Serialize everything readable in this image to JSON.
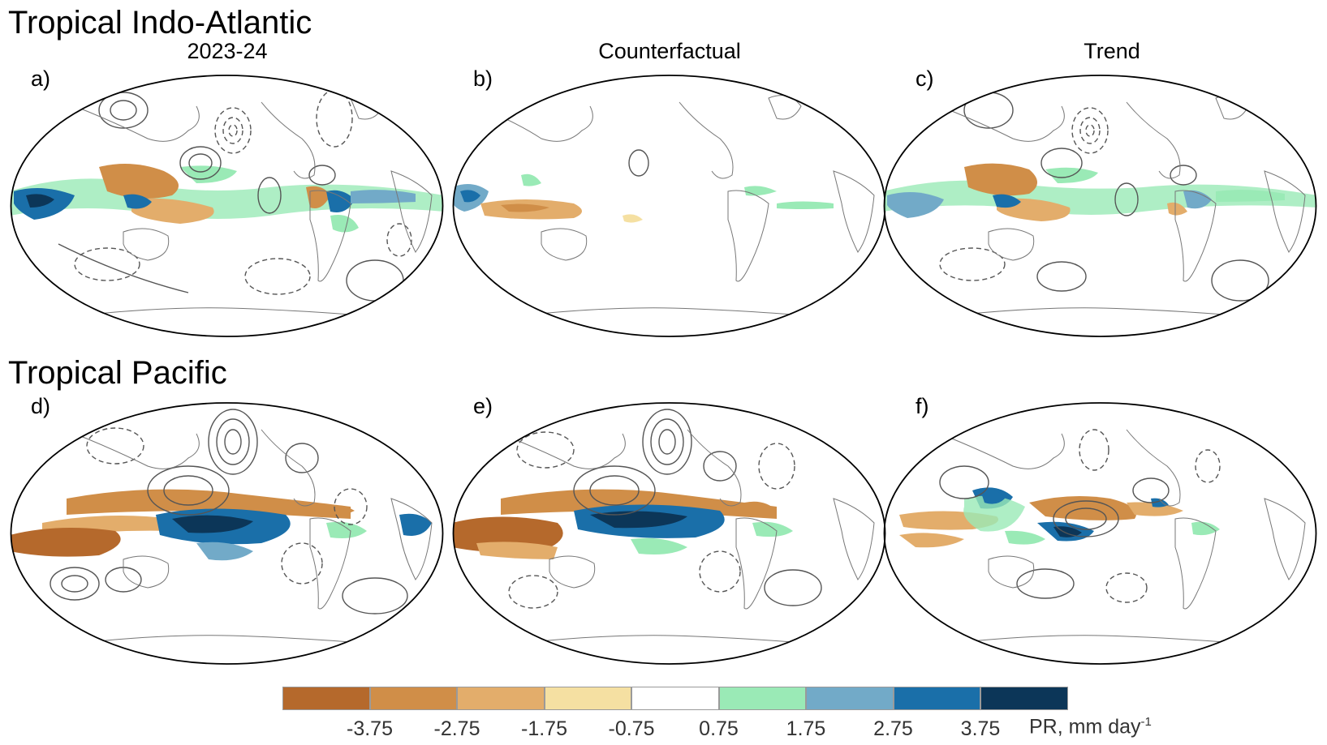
{
  "rows": [
    {
      "title": "Tropical Indo-Atlantic",
      "panels": [
        {
          "label": "a)",
          "column_title": "2023-24"
        },
        {
          "label": "b)",
          "column_title": "Counterfactual"
        },
        {
          "label": "c)",
          "column_title": "Trend"
        }
      ]
    },
    {
      "title": "Tropical Pacific",
      "panels": [
        {
          "label": "d)",
          "column_title": ""
        },
        {
          "label": "e)",
          "column_title": ""
        },
        {
          "label": "f)",
          "column_title": ""
        }
      ]
    }
  ],
  "colorbar": {
    "colors": [
      "#b5692c",
      "#d08e48",
      "#e3ad6b",
      "#f5e0a2",
      "#ffffff",
      "#9aeab6",
      "#72aac8",
      "#1a6fa9",
      "#0c3658"
    ],
    "ticks": [
      "-3.75",
      "-2.75",
      "-1.75",
      "-0.75",
      "0.75",
      "1.75",
      "2.75",
      "3.75"
    ],
    "unit": "PR, mm day",
    "unit_exponent": "-1"
  }
}
